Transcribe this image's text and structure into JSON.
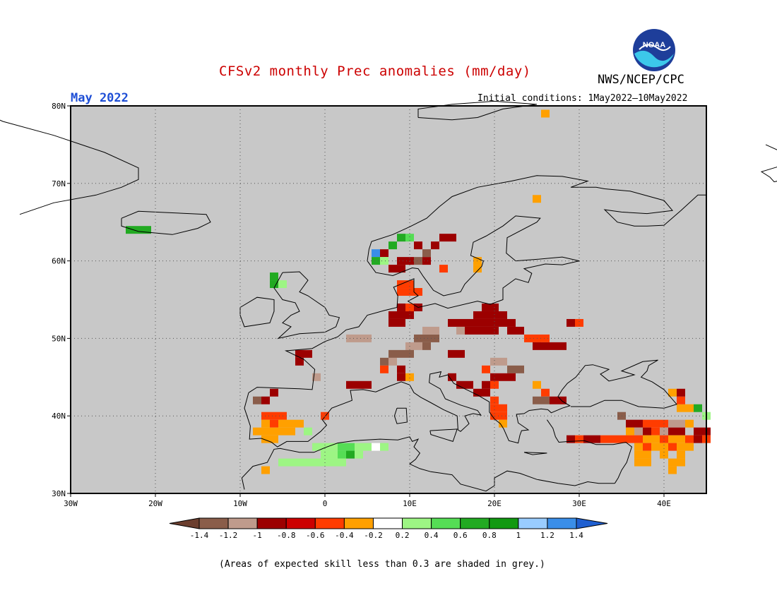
{
  "header": {
    "title": "CFSv2 monthly Prec anomalies (mm/day)",
    "agency": "NWS/NCEP/CPC",
    "month": "May 2022",
    "initial_conditions": "Initial conditions: 1May2022–10May2022",
    "logo_text": "NOAA"
  },
  "map": {
    "lat_labels": [
      "80N",
      "70N",
      "60N",
      "50N",
      "40N",
      "30N"
    ],
    "lat_values": [
      80,
      70,
      60,
      50,
      40,
      30
    ],
    "lon_labels": [
      "30W",
      "20W",
      "10W",
      "0",
      "10E",
      "20E",
      "30E",
      "40E"
    ],
    "lon_values": [
      -30,
      -20,
      -10,
      0,
      10,
      20,
      30,
      40
    ],
    "extent": {
      "lon_min": -30,
      "lon_max": 45,
      "lat_min": 30,
      "lat_max": 80
    },
    "background_color": "#c8c8c8",
    "low_skill_note": "(Areas of expected skill less than 0.3 are shaded in grey.)"
  },
  "legend": {
    "labels": [
      "-1.4",
      "-1.2",
      "-1",
      "-0.8",
      "-0.6",
      "-0.4",
      "-0.2",
      "0.2",
      "0.4",
      "0.6",
      "0.8",
      "1",
      "1.2",
      "1.4"
    ],
    "colors": [
      "#6b3e2e",
      "#8a5d4a",
      "#bf9b8c",
      "#9c0000",
      "#cc0000",
      "#ff3c00",
      "#ffa000",
      "#ffffff",
      "#9df584",
      "#55dd55",
      "#22aa22",
      "#119911",
      "#99ccff",
      "#3a8ee8",
      "#1f5fd0"
    ]
  },
  "anomaly_cells": [
    {
      "lon": 15,
      "lat": 52,
      "v": -0.9
    },
    {
      "lon": 16,
      "lat": 52,
      "v": -0.9
    },
    {
      "lon": 17,
      "lat": 52,
      "v": -0.9
    },
    {
      "lon": 18,
      "lat": 52,
      "v": -0.9
    },
    {
      "lon": 19,
      "lat": 52,
      "v": -0.9
    },
    {
      "lon": 20,
      "lat": 52,
      "v": -0.9
    },
    {
      "lon": 21,
      "lat": 52,
      "v": -0.9
    },
    {
      "lon": 22,
      "lat": 52,
      "v": -0.9
    },
    {
      "lon": 18,
      "lat": 53,
      "v": -0.9
    },
    {
      "lon": 19,
      "lat": 53,
      "v": -0.9
    },
    {
      "lon": 20,
      "lat": 53,
      "v": -0.9
    },
    {
      "lon": 21,
      "lat": 53,
      "v": -0.9
    },
    {
      "lon": 19,
      "lat": 54,
      "v": -0.9
    },
    {
      "lon": 20,
      "lat": 54,
      "v": -0.9
    },
    {
      "lon": 17,
      "lat": 51,
      "v": -0.9
    },
    {
      "lon": 18,
      "lat": 51,
      "v": -0.9
    },
    {
      "lon": 19,
      "lat": 51,
      "v": -0.9
    },
    {
      "lon": 20,
      "lat": 51,
      "v": -0.9
    },
    {
      "lon": 22,
      "lat": 51,
      "v": -0.9
    },
    {
      "lon": 23,
      "lat": 51,
      "v": -0.9
    },
    {
      "lon": 16,
      "lat": 51,
      "v": -1.1
    },
    {
      "lon": 24,
      "lat": 50,
      "v": -0.5
    },
    {
      "lon": 25,
      "lat": 50,
      "v": -0.5
    },
    {
      "lon": 26,
      "lat": 49,
      "v": -0.9
    },
    {
      "lon": 27,
      "lat": 49,
      "v": -0.9
    },
    {
      "lon": 28,
      "lat": 49,
      "v": -0.9
    },
    {
      "lon": 25,
      "lat": 49,
      "v": -0.9
    },
    {
      "lon": 26,
      "lat": 50,
      "v": -0.5
    },
    {
      "lon": 29,
      "lat": 52,
      "v": -0.9
    },
    {
      "lon": 30,
      "lat": 52,
      "v": -0.5
    },
    {
      "lon": 8,
      "lat": 52,
      "v": -0.9
    },
    {
      "lon": 9,
      "lat": 52,
      "v": -0.9
    },
    {
      "lon": 8,
      "lat": 53,
      "v": -0.9
    },
    {
      "lon": 9,
      "lat": 53,
      "v": -0.9
    },
    {
      "lon": 10,
      "lat": 53,
      "v": -0.9
    },
    {
      "lon": 9,
      "lat": 54,
      "v": -0.9
    },
    {
      "lon": 10,
      "lat": 54,
      "v": -0.5
    },
    {
      "lon": 11,
      "lat": 54,
      "v": -0.9
    },
    {
      "lon": 9,
      "lat": 56,
      "v": -0.5
    },
    {
      "lon": 10,
      "lat": 56,
      "v": -0.5
    },
    {
      "lon": 11,
      "lat": 56,
      "v": -0.5
    },
    {
      "lon": 9,
      "lat": 57,
      "v": -0.5
    },
    {
      "lon": 10,
      "lat": 57,
      "v": -0.5
    },
    {
      "lon": 8,
      "lat": 59,
      "v": -0.9
    },
    {
      "lon": 9,
      "lat": 59,
      "v": -0.9
    },
    {
      "lon": 10,
      "lat": 60,
      "v": -0.9
    },
    {
      "lon": 9,
      "lat": 60,
      "v": -0.9
    },
    {
      "lon": 11,
      "lat": 60,
      "v": -1.3
    },
    {
      "lon": 12,
      "lat": 60,
      "v": -0.9
    },
    {
      "lon": 12,
      "lat": 61,
      "v": -1.3
    },
    {
      "lon": 11,
      "lat": 62,
      "v": -0.9
    },
    {
      "lon": 13,
      "lat": 62,
      "v": -0.9
    },
    {
      "lon": 14,
      "lat": 63,
      "v": -0.9
    },
    {
      "lon": 15,
      "lat": 63,
      "v": -0.9
    },
    {
      "lon": 7,
      "lat": 61,
      "v": -0.9
    },
    {
      "lon": 8,
      "lat": 62,
      "v": 0.7
    },
    {
      "lon": 9,
      "lat": 63,
      "v": 0.7
    },
    {
      "lon": 10,
      "lat": 63,
      "v": 0.5
    },
    {
      "lon": 7,
      "lat": 60,
      "v": 0.3
    },
    {
      "lon": 6,
      "lat": 61,
      "v": 1.3
    },
    {
      "lon": 6,
      "lat": 60,
      "v": 0.7
    },
    {
      "lon": 14,
      "lat": 59,
      "v": -0.5
    },
    {
      "lon": 18,
      "lat": 60,
      "v": -0.3
    },
    {
      "lon": 18,
      "lat": 59,
      "v": -0.3
    },
    {
      "lon": 11,
      "lat": 50,
      "v": -1.3
    },
    {
      "lon": 12,
      "lat": 50,
      "v": -1.3
    },
    {
      "lon": 13,
      "lat": 50,
      "v": -1.3
    },
    {
      "lon": 12,
      "lat": 51,
      "v": -1.1
    },
    {
      "lon": 13,
      "lat": 51,
      "v": -1.1
    },
    {
      "lon": 10,
      "lat": 49,
      "v": -1.1
    },
    {
      "lon": 11,
      "lat": 49,
      "v": -1.1
    },
    {
      "lon": 12,
      "lat": 49,
      "v": -1.3
    },
    {
      "lon": 9,
      "lat": 48,
      "v": -1.3
    },
    {
      "lon": 10,
      "lat": 48,
      "v": -1.3
    },
    {
      "lon": 8,
      "lat": 47,
      "v": -1.1
    },
    {
      "lon": 7,
      "lat": 47,
      "v": -1.3
    },
    {
      "lon": 8,
      "lat": 48,
      "v": -1.3
    },
    {
      "lon": 7,
      "lat": 46,
      "v": -0.5
    },
    {
      "lon": 9,
      "lat": 46,
      "v": -0.9
    },
    {
      "lon": 3,
      "lat": 50,
      "v": -1.1
    },
    {
      "lon": 4,
      "lat": 50,
      "v": -1.1
    },
    {
      "lon": 5,
      "lat": 50,
      "v": -1.1
    },
    {
      "lon": -3,
      "lat": 48,
      "v": -0.9
    },
    {
      "lon": -2,
      "lat": 48,
      "v": -0.9
    },
    {
      "lon": -3,
      "lat": 47,
      "v": -0.9
    },
    {
      "lon": -1,
      "lat": 45,
      "v": -1.1
    },
    {
      "lon": 3,
      "lat": 44,
      "v": -0.9
    },
    {
      "lon": 4,
      "lat": 44,
      "v": -0.9
    },
    {
      "lon": 5,
      "lat": 44,
      "v": -0.9
    },
    {
      "lon": 9,
      "lat": 45,
      "v": -0.9
    },
    {
      "lon": 10,
      "lat": 45,
      "v": -0.3
    },
    {
      "lon": 15,
      "lat": 48,
      "v": -0.9
    },
    {
      "lon": 16,
      "lat": 48,
      "v": -0.9
    },
    {
      "lon": 20,
      "lat": 47,
      "v": -1.1
    },
    {
      "lon": 21,
      "lat": 47,
      "v": -1.1
    },
    {
      "lon": 22,
      "lat": 46,
      "v": -1.3
    },
    {
      "lon": 23,
      "lat": 46,
      "v": -1.3
    },
    {
      "lon": 19,
      "lat": 46,
      "v": -0.5
    },
    {
      "lon": 20,
      "lat": 45,
      "v": -0.9
    },
    {
      "lon": 21,
      "lat": 45,
      "v": -0.9
    },
    {
      "lon": 22,
      "lat": 45,
      "v": -0.9
    },
    {
      "lon": 19,
      "lat": 44,
      "v": -0.9
    },
    {
      "lon": 20,
      "lat": 44,
      "v": -0.5
    },
    {
      "lon": 15,
      "lat": 45,
      "v": -0.9
    },
    {
      "lon": 16,
      "lat": 44,
      "v": -0.9
    },
    {
      "lon": 17,
      "lat": 44,
      "v": -0.9
    },
    {
      "lon": 18,
      "lat": 43,
      "v": -0.9
    },
    {
      "lon": 19,
      "lat": 43,
      "v": -0.9
    },
    {
      "lon": 20,
      "lat": 42,
      "v": -0.5
    },
    {
      "lon": 20,
      "lat": 41,
      "v": -0.5
    },
    {
      "lon": 21,
      "lat": 41,
      "v": -0.5
    },
    {
      "lon": 20,
      "lat": 40,
      "v": -0.5
    },
    {
      "lon": 21,
      "lat": 40,
      "v": -0.5
    },
    {
      "lon": 21,
      "lat": 39,
      "v": -0.3
    },
    {
      "lon": 25,
      "lat": 44,
      "v": -0.3
    },
    {
      "lon": 26,
      "lat": 43,
      "v": -0.5
    },
    {
      "lon": 27,
      "lat": 42,
      "v": -0.9
    },
    {
      "lon": 28,
      "lat": 42,
      "v": -0.9
    },
    {
      "lon": 25,
      "lat": 42,
      "v": -1.3
    },
    {
      "lon": 26,
      "lat": 42,
      "v": -1.3
    },
    {
      "lon": -8,
      "lat": 42,
      "v": -1.3
    },
    {
      "lon": -7,
      "lat": 42,
      "v": -0.9
    },
    {
      "lon": -6,
      "lat": 43,
      "v": -0.9
    },
    {
      "lon": -7,
      "lat": 40,
      "v": -0.5
    },
    {
      "lon": -6,
      "lat": 40,
      "v": -0.5
    },
    {
      "lon": -5,
      "lat": 40,
      "v": -0.5
    },
    {
      "lon": -7,
      "lat": 39,
      "v": -0.3
    },
    {
      "lon": -6,
      "lat": 39,
      "v": -0.5
    },
    {
      "lon": -5,
      "lat": 39,
      "v": -0.3
    },
    {
      "lon": -4,
      "lat": 39,
      "v": -0.3
    },
    {
      "lon": -3,
      "lat": 39,
      "v": -0.3
    },
    {
      "lon": -8,
      "lat": 38,
      "v": -0.3
    },
    {
      "lon": -7,
      "lat": 38,
      "v": -0.3
    },
    {
      "lon": -6,
      "lat": 38,
      "v": -0.3
    },
    {
      "lon": -5,
      "lat": 38,
      "v": -0.3
    },
    {
      "lon": -4,
      "lat": 38,
      "v": -0.3
    },
    {
      "lon": -7,
      "lat": 37,
      "v": -0.3
    },
    {
      "lon": -6,
      "lat": 37,
      "v": -0.3
    },
    {
      "lon": 0,
      "lat": 40,
      "v": -0.5
    },
    {
      "lon": -2,
      "lat": 38,
      "v": 0.3
    },
    {
      "lon": -1,
      "lat": 36,
      "v": 0.3
    },
    {
      "lon": 0,
      "lat": 36,
      "v": 0.3
    },
    {
      "lon": 1,
      "lat": 36,
      "v": 0.3
    },
    {
      "lon": 2,
      "lat": 36,
      "v": 0.5
    },
    {
      "lon": 3,
      "lat": 36,
      "v": 0.5
    },
    {
      "lon": 4,
      "lat": 36,
      "v": 0.3
    },
    {
      "lon": 5,
      "lat": 36,
      "v": 0.3
    },
    {
      "lon": 0,
      "lat": 35,
      "v": 0.3
    },
    {
      "lon": 1,
      "lat": 35,
      "v": 0.3
    },
    {
      "lon": 2,
      "lat": 35,
      "v": 0.5
    },
    {
      "lon": 3,
      "lat": 35,
      "v": 0.7
    },
    {
      "lon": 4,
      "lat": 35,
      "v": 0.3
    },
    {
      "lon": -5,
      "lat": 34,
      "v": 0.3
    },
    {
      "lon": -4,
      "lat": 34,
      "v": 0.3
    },
    {
      "lon": -3,
      "lat": 34,
      "v": 0.3
    },
    {
      "lon": -2,
      "lat": 34,
      "v": 0.3
    },
    {
      "lon": -1,
      "lat": 34,
      "v": 0.3
    },
    {
      "lon": 0,
      "lat": 34,
      "v": 0.3
    },
    {
      "lon": 1,
      "lat": 34,
      "v": 0.3
    },
    {
      "lon": 2,
      "lat": 34,
      "v": 0.3
    },
    {
      "lon": 7,
      "lat": 36,
      "v": 0.3
    },
    {
      "lon": 6,
      "lat": 36,
      "v": 0.1
    },
    {
      "lon": -7,
      "lat": 33,
      "v": -0.3
    },
    {
      "lon": -23,
      "lat": 64,
      "v": 0.7
    },
    {
      "lon": -22,
      "lat": 64,
      "v": 0.7
    },
    {
      "lon": -21,
      "lat": 64,
      "v": 0.7
    },
    {
      "lon": -6,
      "lat": 57,
      "v": 0.7
    },
    {
      "lon": -5,
      "lat": 57,
      "v": 0.3
    },
    {
      "lon": -6,
      "lat": 58,
      "v": 0.7
    },
    {
      "lon": 35,
      "lat": 40,
      "v": -1.3
    },
    {
      "lon": 36,
      "lat": 39,
      "v": -0.9
    },
    {
      "lon": 37,
      "lat": 39,
      "v": -0.9
    },
    {
      "lon": 38,
      "lat": 39,
      "v": -0.5
    },
    {
      "lon": 39,
      "lat": 39,
      "v": -0.5
    },
    {
      "lon": 40,
      "lat": 39,
      "v": -0.5
    },
    {
      "lon": 41,
      "lat": 39,
      "v": -1.1
    },
    {
      "lon": 42,
      "lat": 39,
      "v": -1.1
    },
    {
      "lon": 43,
      "lat": 39,
      "v": -0.3
    },
    {
      "lon": 36,
      "lat": 38,
      "v": -0.3
    },
    {
      "lon": 37,
      "lat": 38,
      "v": -1.1
    },
    {
      "lon": 38,
      "lat": 38,
      "v": -0.9
    },
    {
      "lon": 39,
      "lat": 38,
      "v": -0.5
    },
    {
      "lon": 40,
      "lat": 38,
      "v": -1.1
    },
    {
      "lon": 41,
      "lat": 38,
      "v": -0.9
    },
    {
      "lon": 42,
      "lat": 38,
      "v": -0.9
    },
    {
      "lon": 44,
      "lat": 38,
      "v": -0.9
    },
    {
      "lon": 45,
      "lat": 38,
      "v": -0.9
    },
    {
      "lon": 29,
      "lat": 37,
      "v": -0.9
    },
    {
      "lon": 30,
      "lat": 37,
      "v": -0.5
    },
    {
      "lon": 31,
      "lat": 37,
      "v": -0.9
    },
    {
      "lon": 32,
      "lat": 37,
      "v": -0.9
    },
    {
      "lon": 33,
      "lat": 37,
      "v": -0.5
    },
    {
      "lon": 34,
      "lat": 37,
      "v": -0.5
    },
    {
      "lon": 35,
      "lat": 37,
      "v": -0.5
    },
    {
      "lon": 36,
      "lat": 37,
      "v": -0.5
    },
    {
      "lon": 37,
      "lat": 37,
      "v": -0.5
    },
    {
      "lon": 38,
      "lat": 37,
      "v": -0.3
    },
    {
      "lon": 39,
      "lat": 37,
      "v": -0.3
    },
    {
      "lon": 40,
      "lat": 37,
      "v": -0.5
    },
    {
      "lon": 41,
      "lat": 37,
      "v": -0.3
    },
    {
      "lon": 42,
      "lat": 37,
      "v": -0.3
    },
    {
      "lon": 43,
      "lat": 37,
      "v": -0.5
    },
    {
      "lon": 44,
      "lat": 37,
      "v": -0.9
    },
    {
      "lon": 45,
      "lat": 37,
      "v": -0.5
    },
    {
      "lon": 37,
      "lat": 36,
      "v": -0.3
    },
    {
      "lon": 38,
      "lat": 36,
      "v": -0.5
    },
    {
      "lon": 39,
      "lat": 36,
      "v": -0.3
    },
    {
      "lon": 40,
      "lat": 36,
      "v": -0.3
    },
    {
      "lon": 41,
      "lat": 36,
      "v": -0.5
    },
    {
      "lon": 42,
      "lat": 36,
      "v": -0.3
    },
    {
      "lon": 43,
      "lat": 36,
      "v": -0.3
    },
    {
      "lon": 37,
      "lat": 35,
      "v": -0.3
    },
    {
      "lon": 38,
      "lat": 35,
      "v": -0.3
    },
    {
      "lon": 40,
      "lat": 35,
      "v": -0.3
    },
    {
      "lon": 42,
      "lat": 35,
      "v": -0.3
    },
    {
      "lon": 37,
      "lat": 34,
      "v": -0.3
    },
    {
      "lon": 38,
      "lat": 34,
      "v": -0.3
    },
    {
      "lon": 41,
      "lat": 34,
      "v": -0.3
    },
    {
      "lon": 42,
      "lat": 34,
      "v": -0.3
    },
    {
      "lon": 41,
      "lat": 33,
      "v": -0.3
    },
    {
      "lon": 42,
      "lat": 41,
      "v": -0.3
    },
    {
      "lon": 43,
      "lat": 41,
      "v": -0.3
    },
    {
      "lon": 42,
      "lat": 42,
      "v": -0.5
    },
    {
      "lon": 44,
      "lat": 41,
      "v": 0.7
    },
    {
      "lon": 45,
      "lat": 40,
      "v": 0.3
    },
    {
      "lon": 41,
      "lat": 43,
      "v": -0.3
    },
    {
      "lon": 42,
      "lat": 43,
      "v": -0.9
    },
    {
      "lon": 25,
      "lat": 68,
      "v": -0.3
    },
    {
      "lon": 26,
      "lat": 79,
      "v": -0.3
    }
  ]
}
